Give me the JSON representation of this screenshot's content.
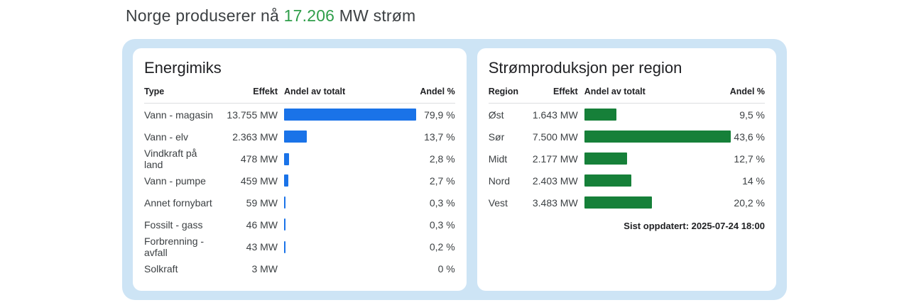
{
  "headline": {
    "prefix": "Norge produserer nå ",
    "value": "17.206",
    "suffix": " MW strøm"
  },
  "colors": {
    "accent_green": "#2f9e4a",
    "bar_blue": "#1a73e8",
    "bar_green": "#168039",
    "panel_blue": "#cde4f5"
  },
  "energimiks": {
    "title": "Energimiks",
    "headers": {
      "type": "Type",
      "effekt": "Effekt",
      "andel_av_totalt": "Andel av totalt",
      "andel_pct": "Andel %"
    },
    "rows": [
      {
        "label": "Vann - magasin",
        "effekt": "13.755 MW",
        "pct": 79.9,
        "pct_label": "79,9 %"
      },
      {
        "label": "Vann - elv",
        "effekt": "2.363 MW",
        "pct": 13.7,
        "pct_label": "13,7 %"
      },
      {
        "label": "Vindkraft på land",
        "effekt": "478 MW",
        "pct": 2.8,
        "pct_label": "2,8 %"
      },
      {
        "label": "Vann - pumpe",
        "effekt": "459 MW",
        "pct": 2.7,
        "pct_label": "2,7 %"
      },
      {
        "label": "Annet fornybart",
        "effekt": "59 MW",
        "pct": 0.3,
        "pct_label": "0,3 %"
      },
      {
        "label": "Fossilt - gass",
        "effekt": "46 MW",
        "pct": 0.3,
        "pct_label": "0,3 %"
      },
      {
        "label": "Forbrenning - avfall",
        "effekt": "43 MW",
        "pct": 0.2,
        "pct_label": "0,2 %"
      },
      {
        "label": "Solkraft",
        "effekt": "3 MW",
        "pct": 0,
        "pct_label": "0 %"
      }
    ]
  },
  "region": {
    "title": "Strømproduksjon per region",
    "headers": {
      "type": "Region",
      "effekt": "Effekt",
      "andel_av_totalt": "Andel av totalt",
      "andel_pct": "Andel %"
    },
    "rows": [
      {
        "label": "Øst",
        "effekt": "1.643 MW",
        "pct": 9.5,
        "pct_label": "9,5 %"
      },
      {
        "label": "Sør",
        "effekt": "7.500 MW",
        "pct": 43.6,
        "pct_label": "43,6 %"
      },
      {
        "label": "Midt",
        "effekt": "2.177 MW",
        "pct": 12.7,
        "pct_label": "12,7 %"
      },
      {
        "label": "Nord",
        "effekt": "2.403 MW",
        "pct": 14,
        "pct_label": "14 %"
      },
      {
        "label": "Vest",
        "effekt": "3.483 MW",
        "pct": 20.2,
        "pct_label": "20,2 %"
      }
    ],
    "last_updated": "Sist oppdatert: 2025-07-24 18:00"
  },
  "chart_data": [
    {
      "type": "bar",
      "orientation": "horizontal",
      "title": "Energimiks",
      "categories": [
        "Vann - magasin",
        "Vann - elv",
        "Vindkraft på land",
        "Vann - pumpe",
        "Annet fornybart",
        "Fossilt - gass",
        "Forbrenning - avfall",
        "Solkraft"
      ],
      "series": [
        {
          "name": "Effekt (MW)",
          "values": [
            13755,
            2363,
            478,
            459,
            59,
            46,
            43,
            3
          ]
        },
        {
          "name": "Andel %",
          "values": [
            79.9,
            13.7,
            2.8,
            2.7,
            0.3,
            0.3,
            0.2,
            0
          ]
        }
      ],
      "xlim": [
        0,
        79.9
      ],
      "bar_color": "#1a73e8",
      "grid": false,
      "legend": "none"
    },
    {
      "type": "bar",
      "orientation": "horizontal",
      "title": "Strømproduksjon per region",
      "categories": [
        "Øst",
        "Sør",
        "Midt",
        "Nord",
        "Vest"
      ],
      "series": [
        {
          "name": "Effekt (MW)",
          "values": [
            1643,
            7500,
            2177,
            2403,
            3483
          ]
        },
        {
          "name": "Andel %",
          "values": [
            9.5,
            43.6,
            12.7,
            14,
            20.2
          ]
        }
      ],
      "xlim": [
        0,
        43.6
      ],
      "bar_color": "#168039",
      "grid": false,
      "legend": "none",
      "annotation": "Sist oppdatert: 2025-07-24 18:00"
    }
  ]
}
